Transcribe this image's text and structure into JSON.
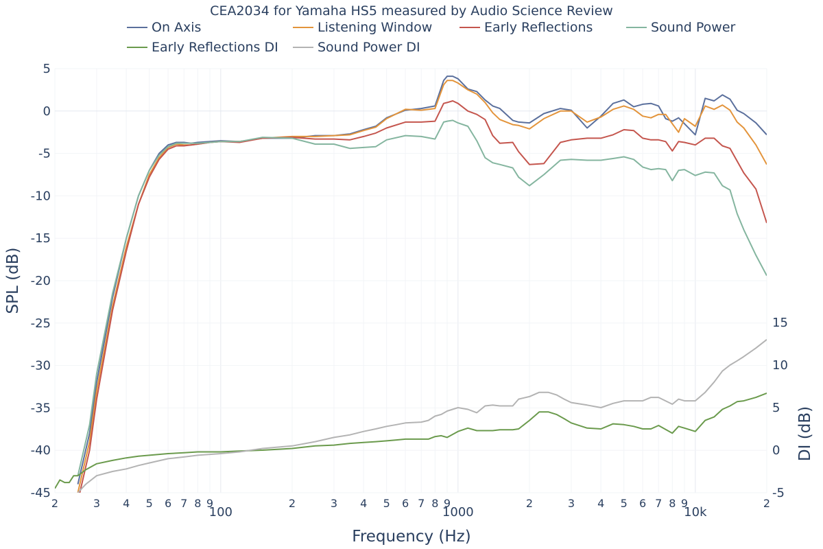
{
  "chart_data": {
    "type": "line",
    "title": "CEA2034 for Yamaha HS5 measured by Audio Science Review",
    "xlabel": "Frequency (Hz)",
    "ylabel": "SPL (dB)",
    "y2label": "DI (dB)",
    "xscale": "log",
    "xlim": [
      20,
      20000
    ],
    "ylim": [
      -45,
      5
    ],
    "y2lim": [
      -5,
      15
    ],
    "y2_ticks_shown": [
      -5,
      0,
      5,
      10,
      15
    ],
    "x_tick_labels": [
      "2",
      "3",
      "4",
      "5",
      "6",
      "7",
      "8",
      "9",
      "100",
      "2",
      "3",
      "4",
      "5",
      "6",
      "7",
      "8",
      "9",
      "1000",
      "2",
      "3",
      "4",
      "5",
      "6",
      "7",
      "8",
      "9",
      "10k",
      "2"
    ],
    "y_ticks": [
      5,
      0,
      -5,
      -10,
      -15,
      -20,
      -25,
      -30,
      -35,
      -40,
      -45
    ],
    "y_tick_labels": [
      "5",
      "0",
      "-5",
      "-10",
      "-15",
      "-20",
      "-25",
      "-30",
      "-35",
      "-40",
      "-45"
    ],
    "y2_tick_labels": [
      "15",
      "10",
      "5",
      "0",
      "-5"
    ],
    "grid": true,
    "legend_position": "top",
    "series": [
      {
        "name": "On Axis",
        "color": "#5a6f9c",
        "axis": "y",
        "x": [
          25,
          28,
          30,
          35,
          40,
          45,
          50,
          55,
          60,
          65,
          70,
          75,
          80,
          90,
          100,
          120,
          150,
          200,
          250,
          300,
          350,
          400,
          450,
          500,
          600,
          700,
          800,
          870,
          900,
          950,
          1000,
          1100,
          1200,
          1300,
          1400,
          1500,
          1700,
          1800,
          2000,
          2300,
          2700,
          3000,
          3500,
          4000,
          4500,
          5000,
          5500,
          6000,
          6500,
          7000,
          7500,
          8000,
          8500,
          9000,
          10000,
          11000,
          12000,
          13000,
          14000,
          15000,
          16000,
          18000,
          20000
        ],
        "y": [
          -44,
          -38,
          -32,
          -22,
          -15,
          -10,
          -7,
          -5,
          -4,
          -3.7,
          -3.7,
          -3.8,
          -3.7,
          -3.6,
          -3.5,
          -3.6,
          -3.2,
          -3.2,
          -2.9,
          -2.9,
          -2.7,
          -2.2,
          -1.8,
          -0.8,
          0.1,
          0.3,
          0.6,
          3.6,
          4.1,
          4.1,
          3.8,
          2.6,
          2.3,
          1.3,
          0.6,
          0.3,
          -1.1,
          -1.3,
          -1.4,
          -0.3,
          0.3,
          0.1,
          -2.0,
          -0.6,
          0.9,
          1.3,
          0.5,
          0.8,
          0.9,
          0.6,
          -0.9,
          -1.2,
          -0.8,
          -1.5,
          -2.8,
          1.5,
          1.2,
          1.9,
          1.4,
          0.1,
          -0.3,
          -1.4,
          -2.8
        ]
      },
      {
        "name": "Listening Window",
        "color": "#e3943b",
        "axis": "y",
        "x": [
          25,
          28,
          30,
          35,
          40,
          45,
          50,
          55,
          60,
          65,
          70,
          75,
          80,
          90,
          100,
          120,
          150,
          200,
          250,
          300,
          350,
          400,
          450,
          500,
          600,
          700,
          800,
          870,
          900,
          950,
          1000,
          1100,
          1200,
          1300,
          1400,
          1500,
          1700,
          1800,
          2000,
          2300,
          2700,
          3000,
          3500,
          4000,
          4500,
          5000,
          5500,
          6000,
          6500,
          7000,
          7500,
          8000,
          8500,
          9000,
          10000,
          11000,
          12000,
          13000,
          14000,
          15000,
          16000,
          18000,
          20000
        ],
        "y": [
          -45,
          -39,
          -33,
          -23,
          -16,
          -11,
          -7.5,
          -5.5,
          -4.3,
          -3.9,
          -4.0,
          -4.0,
          -3.9,
          -3.7,
          -3.6,
          -3.6,
          -3.2,
          -3.0,
          -3.0,
          -2.9,
          -2.8,
          -2.3,
          -1.9,
          -0.9,
          0.2,
          0.1,
          0.3,
          3.1,
          3.6,
          3.6,
          3.3,
          2.5,
          2.0,
          1.0,
          -0.2,
          -1.0,
          -1.6,
          -1.7,
          -2.1,
          -0.9,
          -0.0,
          -0.0,
          -1.3,
          -0.7,
          0.2,
          0.6,
          0.2,
          -0.6,
          -0.8,
          -0.4,
          -0.4,
          -1.5,
          -2.5,
          -0.9,
          -1.8,
          0.6,
          0.2,
          0.7,
          0.1,
          -1.3,
          -2.0,
          -4.0,
          -6.3
        ]
      },
      {
        "name": "Early Reflections",
        "color": "#c4554d",
        "axis": "y",
        "x": [
          25,
          28,
          30,
          35,
          40,
          45,
          50,
          55,
          60,
          65,
          70,
          75,
          80,
          90,
          100,
          120,
          150,
          200,
          250,
          300,
          350,
          400,
          450,
          500,
          600,
          700,
          800,
          870,
          900,
          950,
          1000,
          1100,
          1200,
          1300,
          1400,
          1500,
          1700,
          1800,
          2000,
          2300,
          2700,
          3000,
          3500,
          4000,
          4500,
          5000,
          5500,
          6000,
          6500,
          7000,
          7500,
          8000,
          8500,
          9000,
          10000,
          11000,
          12000,
          13000,
          14000,
          15000,
          16000,
          18000,
          20000
        ],
        "y": [
          -46,
          -40,
          -34,
          -23.5,
          -16.5,
          -11,
          -7.8,
          -5.7,
          -4.5,
          -4.1,
          -4.1,
          -4.0,
          -3.9,
          -3.7,
          -3.6,
          -3.7,
          -3.2,
          -3.1,
          -3.3,
          -3.3,
          -3.4,
          -3.0,
          -2.6,
          -2.0,
          -1.3,
          -1.3,
          -1.2,
          0.9,
          1.0,
          1.2,
          0.9,
          0.0,
          -0.4,
          -1.0,
          -2.9,
          -3.8,
          -3.7,
          -4.8,
          -6.3,
          -6.2,
          -3.7,
          -3.4,
          -3.2,
          -3.2,
          -2.8,
          -2.2,
          -2.3,
          -3.2,
          -3.4,
          -3.4,
          -3.6,
          -4.7,
          -3.6,
          -3.7,
          -4.0,
          -3.2,
          -3.2,
          -4.1,
          -4.4,
          -5.9,
          -7.3,
          -9.2,
          -13.2
        ]
      },
      {
        "name": "Sound Power",
        "color": "#84b59f",
        "axis": "y",
        "x": [
          25,
          28,
          30,
          35,
          40,
          45,
          50,
          55,
          60,
          65,
          70,
          75,
          80,
          90,
          100,
          120,
          150,
          200,
          250,
          300,
          350,
          400,
          450,
          500,
          600,
          700,
          800,
          870,
          900,
          950,
          1000,
          1100,
          1200,
          1300,
          1400,
          1500,
          1700,
          1800,
          2000,
          2300,
          2700,
          3000,
          3500,
          4000,
          4500,
          5000,
          5500,
          6000,
          6500,
          7000,
          7500,
          8000,
          8500,
          9000,
          10000,
          11000,
          12000,
          13000,
          14000,
          15000,
          16000,
          18000,
          20000
        ],
        "y": [
          -43,
          -37,
          -31,
          -21.5,
          -15,
          -10,
          -7,
          -5.2,
          -4.2,
          -3.8,
          -3.8,
          -3.8,
          -3.8,
          -3.7,
          -3.6,
          -3.6,
          -3.1,
          -3.2,
          -3.9,
          -3.9,
          -4.4,
          -4.3,
          -4.2,
          -3.4,
          -2.9,
          -3.0,
          -3.3,
          -1.3,
          -1.2,
          -1.1,
          -1.4,
          -1.8,
          -3.5,
          -5.5,
          -6.1,
          -6.3,
          -6.7,
          -7.8,
          -8.8,
          -7.5,
          -5.8,
          -5.7,
          -5.8,
          -5.8,
          -5.6,
          -5.4,
          -5.7,
          -6.6,
          -6.9,
          -6.8,
          -6.9,
          -8.2,
          -7.0,
          -6.9,
          -7.6,
          -7.2,
          -7.3,
          -8.8,
          -9.3,
          -12.1,
          -14.0,
          -17.0,
          -19.4
        ]
      },
      {
        "name": "Early Reflections DI",
        "color": "#6a9a4c",
        "axis": "y2",
        "x": [
          20,
          21,
          22,
          23,
          24,
          25,
          27,
          30,
          35,
          40,
          45,
          50,
          60,
          70,
          80,
          100,
          120,
          150,
          200,
          250,
          300,
          350,
          400,
          450,
          500,
          550,
          600,
          700,
          750,
          800,
          850,
          900,
          1000,
          1100,
          1200,
          1300,
          1400,
          1500,
          1700,
          1800,
          2000,
          2200,
          2400,
          2600,
          2800,
          3000,
          3500,
          4000,
          4500,
          5000,
          5500,
          6000,
          6500,
          7000,
          8000,
          8500,
          9000,
          10000,
          11000,
          12000,
          13000,
          14000,
          15000,
          16000,
          18000,
          20000
        ],
        "y": [
          -4.5,
          -3.5,
          -3.8,
          -3.8,
          -3.0,
          -3.0,
          -2.3,
          -1.6,
          -1.2,
          -0.9,
          -0.7,
          -0.6,
          -0.4,
          -0.3,
          -0.2,
          -0.2,
          -0.1,
          0.0,
          0.2,
          0.5,
          0.6,
          0.8,
          0.9,
          1.0,
          1.1,
          1.2,
          1.3,
          1.3,
          1.3,
          1.6,
          1.7,
          1.5,
          2.2,
          2.6,
          2.3,
          2.3,
          2.3,
          2.4,
          2.4,
          2.5,
          3.5,
          4.5,
          4.5,
          4.2,
          3.7,
          3.2,
          2.6,
          2.5,
          3.1,
          3.0,
          2.8,
          2.5,
          2.5,
          2.9,
          2.0,
          2.8,
          2.6,
          2.2,
          3.5,
          3.9,
          4.8,
          5.2,
          5.7,
          5.8,
          6.2,
          6.7
        ]
      },
      {
        "name": "Sound Power DI",
        "color": "#b3b3b3",
        "axis": "y2",
        "x": [
          25,
          27,
          30,
          35,
          40,
          45,
          50,
          60,
          70,
          80,
          100,
          120,
          150,
          200,
          250,
          300,
          350,
          400,
          450,
          500,
          550,
          600,
          700,
          750,
          800,
          850,
          900,
          1000,
          1100,
          1200,
          1300,
          1400,
          1500,
          1700,
          1800,
          2000,
          2200,
          2400,
          2600,
          2800,
          3000,
          3500,
          4000,
          4500,
          5000,
          5500,
          6000,
          6500,
          7000,
          8000,
          8500,
          9000,
          10000,
          11000,
          12000,
          13000,
          14000,
          15000,
          16000,
          18000,
          20000
        ],
        "y": [
          -5,
          -4.0,
          -3.0,
          -2.5,
          -2.2,
          -1.8,
          -1.5,
          -1.0,
          -0.8,
          -0.6,
          -0.4,
          -0.2,
          0.2,
          0.5,
          1.0,
          1.5,
          1.8,
          2.2,
          2.5,
          2.8,
          3.0,
          3.2,
          3.3,
          3.5,
          4.0,
          4.2,
          4.6,
          5.0,
          4.8,
          4.4,
          5.2,
          5.3,
          5.2,
          5.2,
          6.0,
          6.3,
          6.8,
          6.8,
          6.5,
          6.0,
          5.6,
          5.3,
          5.0,
          5.5,
          5.8,
          5.8,
          5.8,
          6.2,
          6.2,
          5.4,
          6.0,
          5.8,
          5.8,
          6.8,
          8.0,
          9.3,
          10.0,
          10.5,
          11.0,
          12.0,
          13.0
        ]
      }
    ]
  }
}
